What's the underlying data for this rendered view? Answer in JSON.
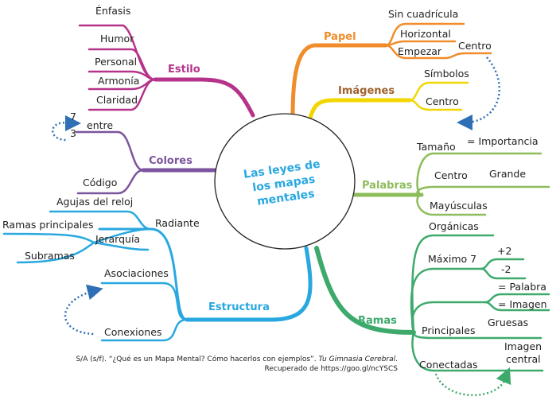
{
  "center": {
    "lines": [
      "Las leyes de",
      "los mapas",
      "mentales"
    ]
  },
  "branches": {
    "estilo": {
      "title": "Estilo",
      "color": "#b5338a",
      "items": [
        "Énfasis",
        "Humor",
        "Personal",
        "Armonía",
        "Claridad"
      ]
    },
    "colores": {
      "title": "Colores",
      "color": "#7b539e",
      "items": [
        "7",
        "3",
        "entre",
        "Código"
      ]
    },
    "estructura": {
      "title": "Estructura",
      "color": "#29a8e0",
      "items": [
        "Agujas del reloj",
        "Radiante",
        "Ramas principales",
        "Jerarquía",
        "Subramas",
        "Asociaciones",
        "Conexiones"
      ]
    },
    "papel": {
      "title": "Papel",
      "color": "#f08c2b",
      "items": [
        "Sin cuadrícula",
        "Horizontal",
        "Empezar",
        "Centro"
      ]
    },
    "imagenes": {
      "title": "Imágenes",
      "color": "#a0612e",
      "items": [
        "Símbolos",
        "Centro"
      ]
    },
    "palabras": {
      "title": "Palabras",
      "color": "#8dbd5a",
      "items": [
        "Tamaño",
        "= Importancia",
        "Centro",
        "Grande",
        "Mayúsculas"
      ]
    },
    "ramas": {
      "title": "Ramas",
      "color": "#3daa6c",
      "items": [
        "Orgánicas",
        "Máximo 7",
        "+2",
        "-2",
        "= Palabra",
        "= Imagen",
        "Principales",
        "Gruesas",
        "Conectadas",
        "Imagen",
        "central"
      ]
    }
  },
  "citation": {
    "line1_prefix": "S/A (s/f). “¿Qué es un Mapa Mental? Cómo hacerlos con ejemplos”. ",
    "line1_italic": "Tu Gimnasia Cerebral",
    "line1_suffix": ".",
    "line2": "Recuperado de https://goo.gl/ncYSCS"
  },
  "colors": {
    "yellow_branch": "#f2d600",
    "dotted_arrow": "#2f6fb5",
    "dotted_arrow_green": "#3daa6c"
  }
}
